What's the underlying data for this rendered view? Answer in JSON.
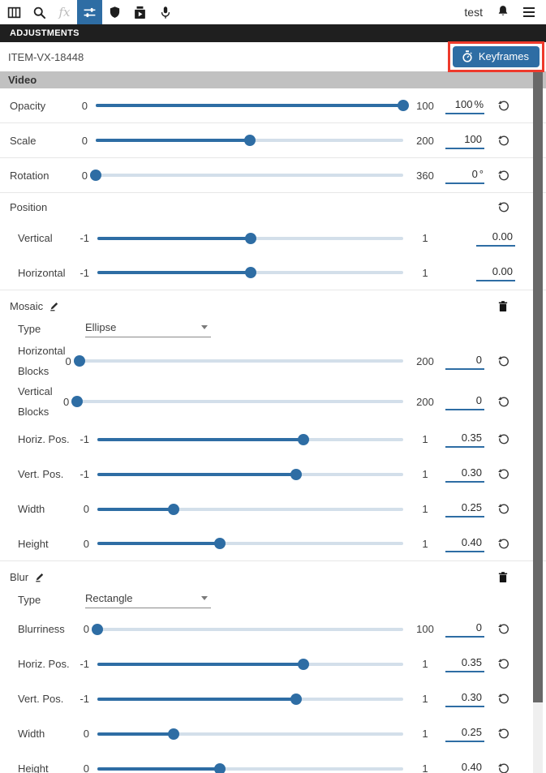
{
  "colors": {
    "accent": "#2e6da4",
    "highlight_red": "#ee3a2c",
    "section_header_bg": "#c1c1c1",
    "panel_bar_bg": "#1f1f1f"
  },
  "toolbar": {
    "user": "test",
    "icons": [
      "library-icon",
      "search-icon",
      "effects-icon",
      "adjustments-icon",
      "shield-icon",
      "media-export-icon",
      "microphone-icon",
      "bell-icon",
      "menu-icon"
    ],
    "effects_glyph": "fx",
    "active_icon": "adjustments-icon"
  },
  "panel": {
    "title": "ADJUSTMENTS"
  },
  "item": {
    "id": "ITEM-VX-18448",
    "keyframes_label": "Keyframes"
  },
  "video": {
    "header": "Video"
  },
  "rows": [
    {
      "type": "slider",
      "label": "Opacity",
      "min": 0,
      "max": 100,
      "value": 100,
      "display": "100",
      "suffix": "%",
      "reset": true,
      "divider": true
    },
    {
      "type": "slider",
      "label": "Scale",
      "min": 0,
      "max": 200,
      "value": 100,
      "display": "100",
      "suffix": "",
      "reset": true,
      "divider": true
    },
    {
      "type": "slider",
      "label": "Rotation",
      "min": 0,
      "max": 360,
      "value": 0,
      "display": "0",
      "suffix": "°",
      "reset": true,
      "divider": true
    },
    {
      "type": "group-header",
      "label": "Position",
      "reset": true
    },
    {
      "type": "slider",
      "label": "Vertical",
      "min": -1,
      "max": 1,
      "value": 0,
      "display": "0.00",
      "suffix": "",
      "reset": false,
      "indent": true
    },
    {
      "type": "slider",
      "label": "Horizontal",
      "min": -1,
      "max": 1,
      "value": 0,
      "display": "0.00",
      "suffix": "",
      "reset": false,
      "indent": true,
      "divider": true
    },
    {
      "type": "section-header",
      "label": "Mosaic",
      "edit": true,
      "delete": true
    },
    {
      "type": "dropdown",
      "label": "Type",
      "value": "Ellipse"
    },
    {
      "type": "slider",
      "label": "Horizontal Blocks",
      "min": 0,
      "max": 200,
      "value": 0,
      "display": "0",
      "suffix": "",
      "reset": true,
      "indent": true,
      "narrow": true
    },
    {
      "type": "slider",
      "label": "Vertical Blocks",
      "min": 0,
      "max": 200,
      "value": 0,
      "display": "0",
      "suffix": "",
      "reset": true,
      "indent": true,
      "narrow": true
    },
    {
      "type": "slider",
      "label": "Horiz. Pos.",
      "min": -1,
      "max": 1,
      "value": 0.35,
      "display": "0.35",
      "suffix": "",
      "reset": true,
      "indent": true
    },
    {
      "type": "slider",
      "label": "Vert. Pos.",
      "min": -1,
      "max": 1,
      "value": 0.3,
      "display": "0.30",
      "suffix": "",
      "reset": true,
      "indent": true
    },
    {
      "type": "slider",
      "label": "Width",
      "min": 0,
      "max": 1,
      "value": 0.25,
      "display": "0.25",
      "suffix": "",
      "reset": true,
      "indent": true
    },
    {
      "type": "slider",
      "label": "Height",
      "min": 0,
      "max": 1,
      "value": 0.4,
      "display": "0.40",
      "suffix": "",
      "reset": true,
      "indent": true,
      "divider": true
    },
    {
      "type": "section-header",
      "label": "Blur",
      "edit": true,
      "delete": true
    },
    {
      "type": "dropdown",
      "label": "Type",
      "value": "Rectangle"
    },
    {
      "type": "slider",
      "label": "Blurriness",
      "min": 0,
      "max": 100,
      "value": 0,
      "display": "0",
      "suffix": "",
      "reset": true,
      "indent": true
    },
    {
      "type": "slider",
      "label": "Horiz. Pos.",
      "min": -1,
      "max": 1,
      "value": 0.35,
      "display": "0.35",
      "suffix": "",
      "reset": true,
      "indent": true
    },
    {
      "type": "slider",
      "label": "Vert. Pos.",
      "min": -1,
      "max": 1,
      "value": 0.3,
      "display": "0.30",
      "suffix": "",
      "reset": true,
      "indent": true
    },
    {
      "type": "slider",
      "label": "Width",
      "min": 0,
      "max": 1,
      "value": 0.25,
      "display": "0.25",
      "suffix": "",
      "reset": true,
      "indent": true
    },
    {
      "type": "slider",
      "label": "Height",
      "min": 0,
      "max": 1,
      "value": 0.4,
      "display": "0.40",
      "suffix": "",
      "reset": true,
      "indent": true
    }
  ]
}
